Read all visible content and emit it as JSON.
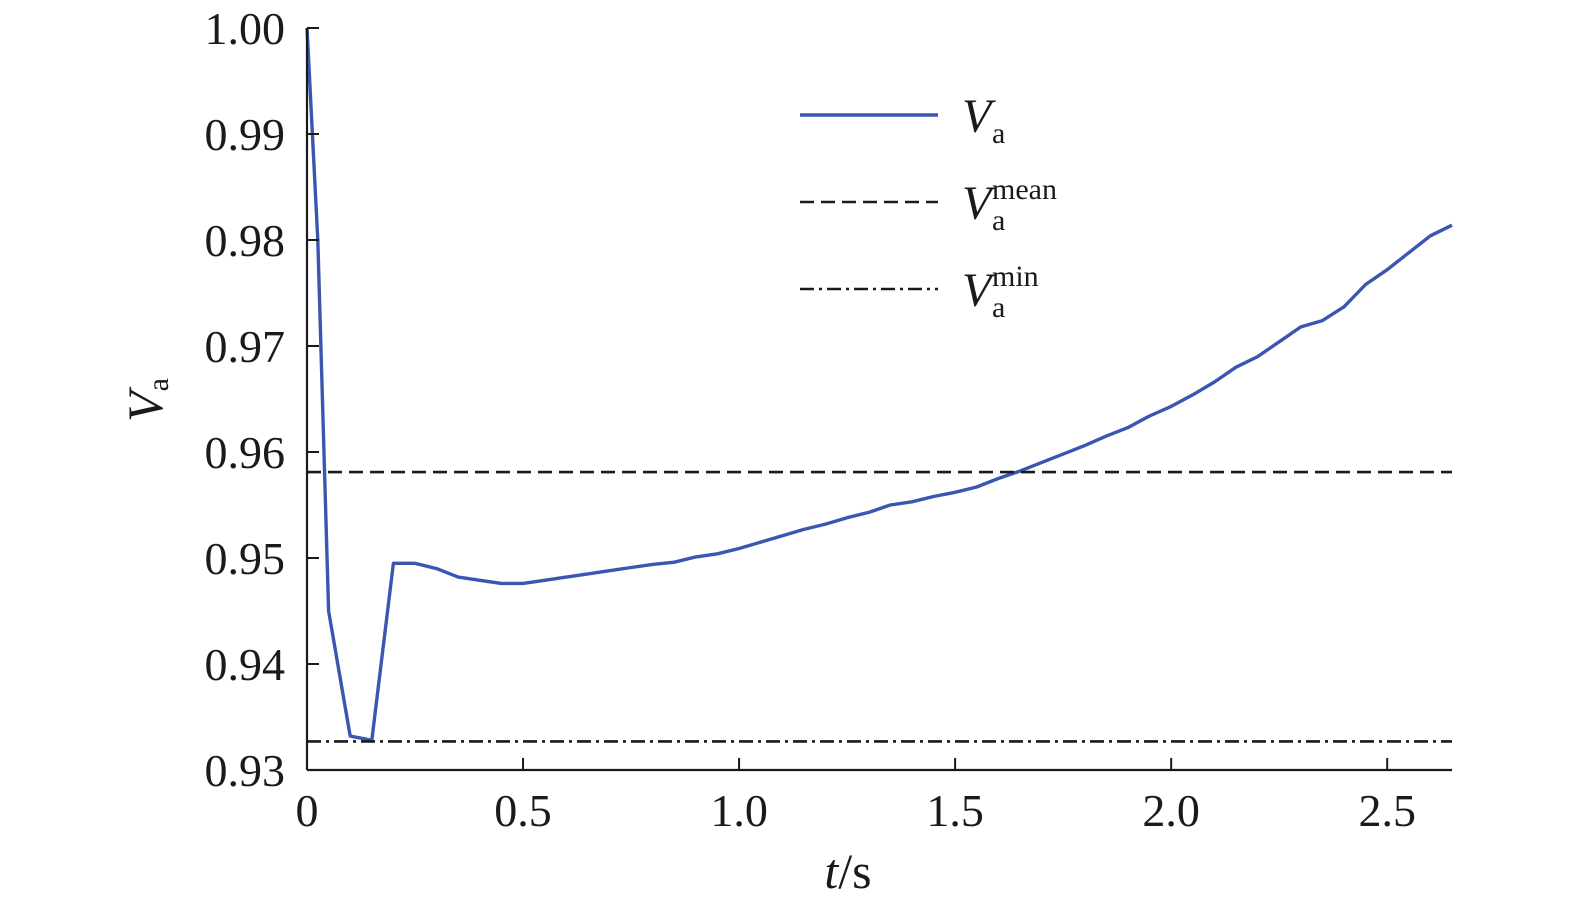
{
  "chart_data": {
    "type": "line",
    "xlabel": {
      "var": "t",
      "unit": "/s"
    },
    "ylabel": {
      "var": "V",
      "sub": "a"
    },
    "xlim": [
      0,
      2.65
    ],
    "ylim": [
      0.93,
      1.0
    ],
    "xticks": [
      {
        "value": 0,
        "label": "0"
      },
      {
        "value": 0.5,
        "label": "0.5"
      },
      {
        "value": 1.0,
        "label": "1.0"
      },
      {
        "value": 1.5,
        "label": "1.5"
      },
      {
        "value": 2.0,
        "label": "2.0"
      },
      {
        "value": 2.5,
        "label": "2.5"
      }
    ],
    "yticks": [
      {
        "value": 0.93,
        "label": "0.93"
      },
      {
        "value": 0.94,
        "label": "0.94"
      },
      {
        "value": 0.95,
        "label": "0.95"
      },
      {
        "value": 0.96,
        "label": "0.96"
      },
      {
        "value": 0.97,
        "label": "0.97"
      },
      {
        "value": 0.98,
        "label": "0.98"
      },
      {
        "value": 0.99,
        "label": "0.99"
      },
      {
        "value": 1.0,
        "label": "1.00"
      }
    ],
    "legend_position": "top-right",
    "series": [
      {
        "name": {
          "var": "V",
          "sub": "a",
          "sup": ""
        },
        "style": "solid",
        "color": "#3a56b0",
        "x": [
          0,
          0.025,
          0.05,
          0.1,
          0.15,
          0.2,
          0.25,
          0.3,
          0.35,
          0.4,
          0.45,
          0.5,
          0.55,
          0.6,
          0.65,
          0.7,
          0.75,
          0.8,
          0.85,
          0.9,
          0.95,
          1.0,
          1.05,
          1.1,
          1.15,
          1.2,
          1.25,
          1.3,
          1.35,
          1.4,
          1.45,
          1.5,
          1.55,
          1.6,
          1.65,
          1.7,
          1.75,
          1.8,
          1.85,
          1.9,
          1.95,
          2.0,
          2.05,
          2.1,
          2.15,
          2.2,
          2.25,
          2.3,
          2.35,
          2.4,
          2.45,
          2.5,
          2.55,
          2.6,
          2.65
        ],
        "values": [
          1.0,
          0.98,
          0.945,
          0.9332,
          0.9328,
          0.9495,
          0.9495,
          0.949,
          0.9482,
          0.9479,
          0.9476,
          0.9476,
          0.9479,
          0.9482,
          0.9485,
          0.9488,
          0.9491,
          0.9494,
          0.9496,
          0.9501,
          0.9504,
          0.9509,
          0.9515,
          0.9521,
          0.9527,
          0.9532,
          0.9538,
          0.9543,
          0.955,
          0.9553,
          0.9558,
          0.9562,
          0.9567,
          0.9575,
          0.9582,
          0.959,
          0.9598,
          0.9606,
          0.9615,
          0.9623,
          0.9634,
          0.9643,
          0.9654,
          0.9666,
          0.968,
          0.969,
          0.9704,
          0.9718,
          0.9724,
          0.9737,
          0.9758,
          0.9772,
          0.9788,
          0.9804,
          0.9814
        ]
      },
      {
        "name": {
          "var": "V",
          "sub": "a",
          "sup": "mean"
        },
        "style": "dashed",
        "color": "#1a1a1a",
        "x": [
          0,
          2.65
        ],
        "values": [
          0.9581,
          0.9581
        ]
      },
      {
        "name": {
          "var": "V",
          "sub": "a",
          "sup": "min"
        },
        "style": "dashdot",
        "color": "#1a1a1a",
        "x": [
          0,
          2.65
        ],
        "values": [
          0.9327,
          0.9327
        ]
      }
    ]
  }
}
